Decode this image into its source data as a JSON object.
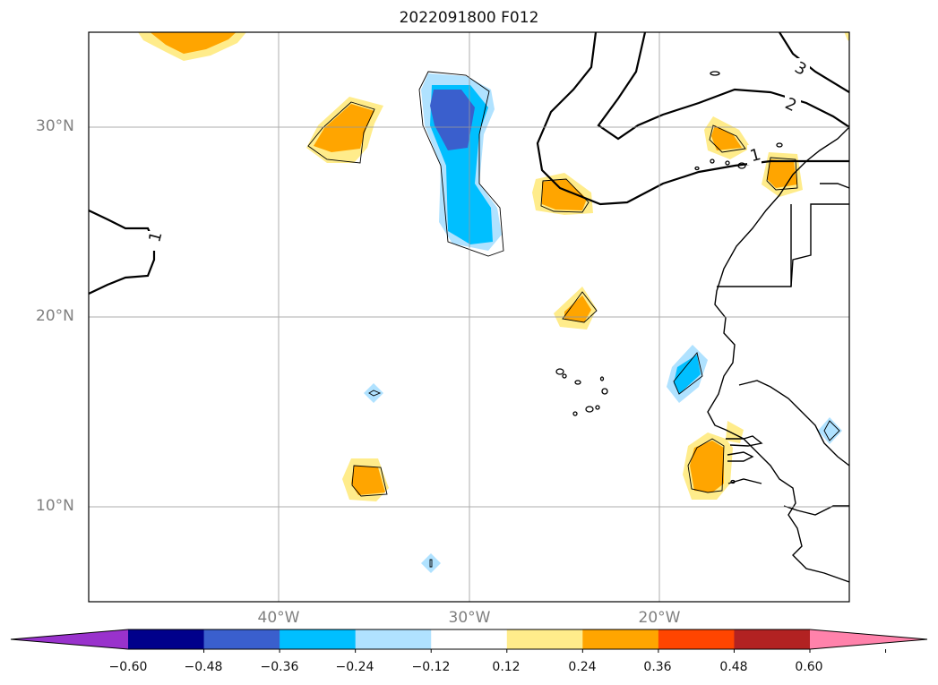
{
  "title": "2022091800 F012",
  "lat_labels": [
    "30°N",
    "20°N",
    "10°N"
  ],
  "lon_labels": [
    "40°W",
    "30°W",
    "20°W"
  ],
  "contour_labels": [
    "1",
    "1",
    "2",
    "3"
  ],
  "colorbar": {
    "ticks": [
      "−0.60",
      "−0.48",
      "−0.36",
      "−0.24",
      "−0.12",
      "0.12",
      "0.24",
      "0.36",
      "0.48",
      "0.60"
    ],
    "colors": [
      "#9932cc",
      "#00008b",
      "#3a5fcd",
      "#00bfff",
      "#b0e2ff",
      "#ffffff",
      "#ffec8b",
      "#ffa500",
      "#ff4500",
      "#b22222",
      "#ff82ab"
    ]
  }
}
